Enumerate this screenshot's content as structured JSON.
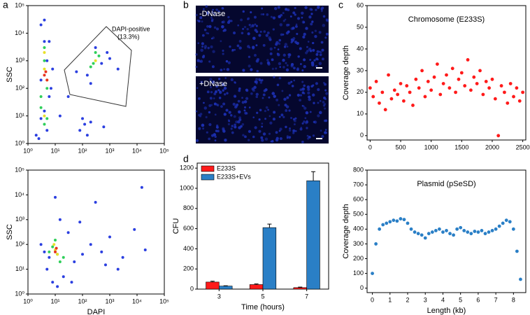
{
  "panel_labels": [
    "a",
    "b",
    "c",
    "d"
  ],
  "images": [
    {
      "label": "-DNase"
    },
    {
      "label": "+DNase"
    }
  ],
  "chart_data": [
    {
      "type": "scatter",
      "xlog": true,
      "ylog": true,
      "y_label": "SSC",
      "annotation": [
        "DAPI-positive",
        "(13.3%)"
      ],
      "xlim": [
        1,
        100000
      ],
      "ylim": [
        1,
        100000
      ],
      "xticks": [
        {
          "value": 1,
          "label": "10⁰"
        },
        {
          "value": 10,
          "label": "10¹"
        },
        {
          "value": 100,
          "label": "10²"
        },
        {
          "value": 1000,
          "label": "10³"
        },
        {
          "value": 10000,
          "label": "10⁴"
        },
        {
          "value": 100000,
          "label": "10⁵"
        }
      ],
      "yticks": [
        {
          "value": 1,
          "label": "10⁰"
        },
        {
          "value": 10,
          "label": "10¹"
        },
        {
          "value": 100,
          "label": "10²"
        },
        {
          "value": 1000,
          "label": "10³"
        },
        {
          "value": 10000,
          "label": "10⁴"
        },
        {
          "value": 100000,
          "label": "10⁵"
        }
      ],
      "series": [
        {
          "color": "#2b3fe0",
          "x": [
            3,
            4,
            5,
            6,
            2,
            3,
            5,
            7,
            4,
            3,
            8,
            2.5,
            4,
            6,
            150,
            300,
            500,
            800,
            200,
            120,
            600,
            1000,
            80,
            100,
            150,
            200,
            60,
            2000,
            30,
            15
          ],
          "values": [
            20000,
            5000,
            1000,
            50,
            2,
            8,
            3,
            100,
            30000,
            200,
            500,
            1.5,
            15,
            5000,
            300,
            3000,
            800,
            2000,
            150,
            5,
            4,
            1200,
            3,
            8,
            2,
            6,
            400,
            500,
            50,
            10
          ]
        },
        {
          "color": "#2fcf5a",
          "x": [
            4,
            5,
            3,
            4,
            5,
            250,
            400,
            200,
            300,
            4,
            3
          ],
          "values": [
            1000,
            100,
            20,
            5,
            8,
            800,
            1500,
            600,
            2000,
            3000,
            50
          ]
        },
        {
          "color": "#e8e02a",
          "x": [
            4,
            5,
            4,
            300,
            4
          ],
          "values": [
            500,
            200,
            10,
            1000,
            2000
          ]
        },
        {
          "color": "#e8321e",
          "x": [
            4,
            4.5,
            5
          ],
          "values": [
            300,
            400,
            200
          ]
        }
      ]
    },
    {
      "type": "scatter",
      "xlog": true,
      "ylog": true,
      "x_label": "DAPI",
      "y_label": "SSC",
      "xlim": [
        1,
        100000
      ],
      "ylim": [
        1,
        100000
      ],
      "xticks": [
        {
          "value": 1,
          "label": "10⁰"
        },
        {
          "value": 10,
          "label": "10¹"
        },
        {
          "value": 100,
          "label": "10²"
        },
        {
          "value": 1000,
          "label": "10³"
        },
        {
          "value": 10000,
          "label": "10⁴"
        },
        {
          "value": 100000,
          "label": "10⁵"
        }
      ],
      "yticks": [
        {
          "value": 1,
          "label": "10⁰"
        },
        {
          "value": 10,
          "label": "10¹"
        },
        {
          "value": 100,
          "label": "10²"
        },
        {
          "value": 1000,
          "label": "10³"
        },
        {
          "value": 10000,
          "label": "10⁴"
        },
        {
          "value": 100000,
          "label": "10⁵"
        }
      ],
      "series": [
        {
          "color": "#2b3fe0",
          "x": [
            5,
            20,
            30,
            100,
            200,
            500,
            1000,
            3000,
            8000,
            15000,
            3,
            8,
            15,
            6,
            50,
            300,
            2000,
            10,
            12,
            4,
            40,
            80,
            20000,
            700
          ],
          "values": [
            10,
            5,
            300,
            40,
            100,
            50,
            200,
            30,
            400,
            20000,
            100,
            3,
            1000,
            30,
            20,
            5000,
            10,
            8000,
            2,
            50,
            3,
            800,
            60,
            15
          ]
        },
        {
          "color": "#2fcf5a",
          "x": [
            8,
            12,
            15,
            10,
            6,
            20
          ],
          "values": [
            80,
            40,
            20,
            150,
            50,
            30
          ]
        },
        {
          "color": "#e8e02a",
          "x": [
            10,
            9,
            12
          ],
          "values": [
            60,
            100,
            40
          ]
        },
        {
          "color": "#e8321e",
          "x": [
            10,
            11
          ],
          "values": [
            50,
            70
          ]
        }
      ]
    },
    {
      "type": "scatter",
      "title": "Chromosome (E233S)",
      "y_label": "Coverage depth",
      "xlim": [
        -50,
        2550
      ],
      "ylim": [
        -2,
        60
      ],
      "xticks": [
        0,
        500,
        1000,
        1500,
        2000,
        2500
      ],
      "yticks": [
        0,
        10,
        20,
        30,
        40,
        50,
        60
      ],
      "x": [
        0,
        50,
        100,
        150,
        200,
        250,
        300,
        350,
        400,
        450,
        500,
        550,
        600,
        650,
        700,
        750,
        800,
        850,
        900,
        950,
        1000,
        1050,
        1100,
        1150,
        1200,
        1250,
        1300,
        1350,
        1400,
        1450,
        1500,
        1550,
        1600,
        1650,
        1700,
        1750,
        1800,
        1850,
        1900,
        1950,
        2000,
        2050,
        2100,
        2150,
        2200,
        2250,
        2300,
        2350,
        2400,
        2450,
        2500
      ],
      "series": [
        {
          "color": "#ff1a1a",
          "values": [
            22,
            18,
            25,
            15,
            20,
            12,
            28,
            17,
            21,
            19,
            24,
            16,
            23,
            20,
            14,
            26,
            22,
            30,
            18,
            25,
            21,
            27,
            33,
            19,
            24,
            28,
            22,
            31,
            20,
            26,
            29,
            23,
            35,
            21,
            27,
            24,
            30,
            19,
            25,
            22,
            26,
            17,
            0,
            23,
            20,
            15,
            24,
            18,
            22,
            16,
            20
          ]
        }
      ]
    },
    {
      "type": "scatter",
      "title": "Plasmid (pSeSD)",
      "x_label": "Length (kb)",
      "y_label": "Coverage depth",
      "xlim": [
        -0.3,
        8.7
      ],
      "ylim": [
        -30,
        800
      ],
      "xticks": [
        0,
        1,
        2,
        3,
        4,
        5,
        6,
        7,
        8
      ],
      "yticks": [
        0,
        100,
        200,
        300,
        400,
        500,
        600,
        700,
        800
      ],
      "x": [
        0,
        0.2,
        0.4,
        0.6,
        0.8,
        1,
        1.2,
        1.4,
        1.6,
        1.8,
        2,
        2.2,
        2.4,
        2.6,
        2.8,
        3,
        3.2,
        3.4,
        3.6,
        3.8,
        4,
        4.2,
        4.4,
        4.6,
        4.8,
        5,
        5.2,
        5.4,
        5.6,
        5.8,
        6,
        6.2,
        6.4,
        6.6,
        6.8,
        7,
        7.2,
        7.4,
        7.6,
        7.8,
        8,
        8.2,
        8.4
      ],
      "series": [
        {
          "color": "#2a7fc6",
          "values": [
            100,
            300,
            400,
            430,
            440,
            450,
            460,
            455,
            470,
            465,
            440,
            400,
            380,
            370,
            360,
            340,
            370,
            380,
            390,
            400,
            380,
            390,
            370,
            360,
            400,
            410,
            390,
            380,
            370,
            385,
            380,
            390,
            370,
            380,
            390,
            400,
            420,
            440,
            460,
            450,
            400,
            250,
            60
          ]
        }
      ]
    },
    {
      "type": "bar",
      "x_label": "Time (hours)",
      "y_label": "CFU",
      "categories": [
        "3",
        "5",
        "7"
      ],
      "ylim": [
        0,
        1250
      ],
      "yticks": [
        0,
        200,
        400,
        600,
        800,
        1000,
        1200
      ],
      "series": [
        {
          "name": "E233S",
          "color": "#ff1a1a",
          "values": [
            70,
            45,
            15
          ],
          "errors": [
            8,
            6,
            5
          ]
        },
        {
          "name": "E233S+EVs",
          "color": "#2a7fc6",
          "values": [
            30,
            610,
            1075
          ],
          "errors": [
            3,
            35,
            90
          ]
        }
      ]
    }
  ]
}
